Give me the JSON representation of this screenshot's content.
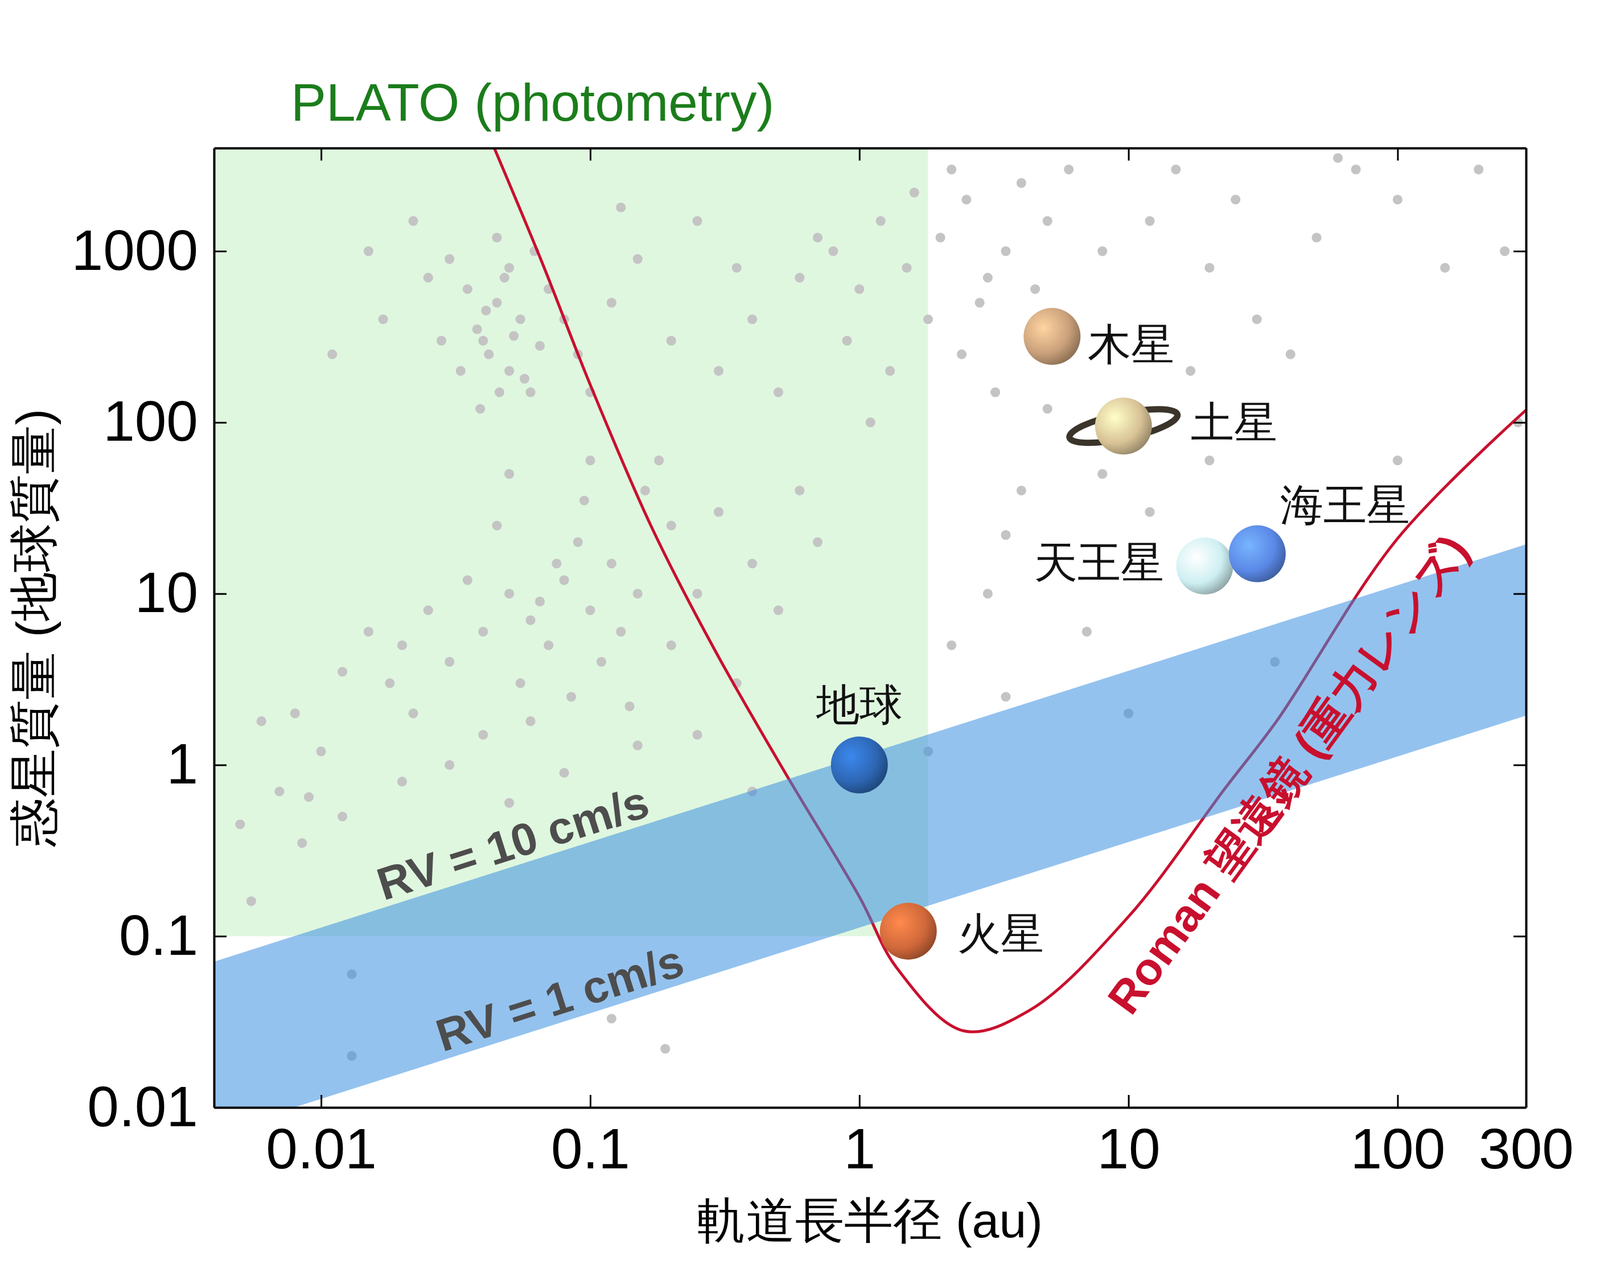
{
  "chart_data": {
    "type": "scatter",
    "log": true,
    "xlabel": "軌道長半径 (au)",
    "ylabel": "惑星質量 (地球質量)",
    "xlim": [
      0.004,
      300
    ],
    "ylim": [
      0.01,
      4000
    ],
    "xticks": [
      0.01,
      0.1,
      1,
      10,
      100,
      300
    ],
    "yticks": [
      0.01,
      0.1,
      1,
      10,
      100,
      1000
    ],
    "series": [
      {
        "color": "#c4c4c4",
        "marker": "circle",
        "x": [
          0.04,
          0.045,
          0.05,
          0.055,
          0.035,
          0.042,
          0.06,
          0.048,
          0.038,
          0.052,
          0.065,
          0.03,
          0.045,
          0.07,
          0.033,
          0.057,
          0.041,
          0.05,
          0.08,
          0.028,
          0.062,
          0.046,
          0.039,
          0.025,
          0.09,
          0.12,
          0.15,
          0.2,
          0.25,
          0.3,
          0.1,
          0.18,
          0.35,
          0.4,
          0.13,
          0.022,
          0.017,
          0.015,
          0.011,
          0.8,
          1,
          1.2,
          1.5,
          2,
          2.5,
          3,
          1.8,
          2.2,
          0.9,
          1.3,
          3.5,
          4,
          0.6,
          0.7,
          1.6,
          2.8,
          5,
          6,
          8,
          0.5,
          1.1,
          2.4,
          3.2,
          4.5,
          0.05,
          0.06,
          0.08,
          0.1,
          0.07,
          0.09,
          0.12,
          0.04,
          0.03,
          0.11,
          0.15,
          0.2,
          0.065,
          0.075,
          0.055,
          0.085,
          0.13,
          0.045,
          0.035,
          0.025,
          0.02,
          0.018,
          0.16,
          0.25,
          0.3,
          0.095,
          0.14,
          0.06,
          0.04,
          0.022,
          0.015,
          0.012,
          0.2,
          0.1,
          0.05,
          0.4,
          0.5,
          0.35,
          0.6,
          0.7,
          0.01,
          0.008,
          0.006,
          0.007,
          0.012,
          0.02,
          0.03,
          0.05,
          0.08,
          0.15,
          0.25,
          0.4,
          0.0055,
          0.0085,
          0.005,
          0.009,
          0.013,
          0.013,
          0.12,
          0.19,
          5,
          8,
          17,
          12,
          15,
          20,
          25,
          30,
          40,
          50,
          70,
          100,
          150,
          200,
          250,
          7,
          12,
          3,
          3.5,
          2.2,
          1.8,
          3.5,
          10,
          35,
          100,
          280,
          60,
          20,
          4
        ],
        "y": [
          300,
          500,
          200,
          400,
          600,
          250,
          150,
          700,
          350,
          320,
          280,
          900,
          1200,
          600,
          200,
          180,
          450,
          800,
          400,
          300,
          1000,
          150,
          120,
          700,
          250,
          500,
          900,
          300,
          1500,
          200,
          150,
          60,
          800,
          400,
          1800,
          1500,
          400,
          1000,
          250,
          1000,
          600,
          1500,
          800,
          1200,
          2000,
          700,
          400,
          3000,
          300,
          200,
          1000,
          2500,
          700,
          1200,
          2200,
          500,
          1500,
          3000,
          1000,
          150,
          100,
          250,
          150,
          600,
          10,
          7,
          12,
          8,
          5,
          20,
          15,
          6,
          4,
          4,
          10,
          25,
          9,
          15,
          3,
          2.5,
          6,
          25,
          12,
          8,
          5,
          3,
          40,
          10,
          30,
          35,
          2.2,
          1.8,
          1.5,
          2,
          6,
          3.5,
          5,
          60,
          50,
          15,
          8,
          3,
          40,
          20,
          1.2,
          2,
          1.8,
          0.7,
          0.5,
          0.8,
          1,
          0.6,
          0.9,
          1.3,
          1.5,
          0.7,
          0.16,
          0.35,
          0.45,
          0.65,
          0.06,
          0.02,
          0.033,
          0.022,
          120,
          50,
          200,
          1500,
          3000,
          800,
          2000,
          400,
          250,
          1200,
          3000,
          2000,
          800,
          3000,
          1000,
          6,
          30,
          10,
          22,
          5,
          1.2,
          2.5,
          2,
          4,
          60,
          100,
          3500,
          60,
          40
        ]
      }
    ],
    "regions": [
      {
        "label": "PLATO (photometry)",
        "xlim": [
          0.004,
          1.8
        ],
        "ylim": [
          0.1,
          4000
        ],
        "color": "#dff7df"
      }
    ],
    "bands": [
      {
        "color": "#3d8fe0",
        "lines": [
          {
            "label": "RV = 10 cm/s",
            "x": [
              0.004,
              300
            ],
            "y": [
              0.071,
              19.4
            ]
          },
          {
            "label": "RV = 1 cm/s",
            "x": [
              0.004,
              300
            ],
            "y": [
              0.0071,
              1.94
            ]
          }
        ]
      }
    ],
    "curves": [
      {
        "label": "Roman 望遠鏡 (重力レンズ)",
        "color": "#c8102e",
        "x": [
          0.044,
          0.066,
          0.1,
          0.17,
          0.29,
          0.53,
          1,
          1.38,
          2.44,
          4.3,
          10,
          23,
          35.5,
          100,
          300
        ],
        "y": [
          4000,
          870,
          166,
          24,
          4.7,
          0.9,
          0.17,
          0.065,
          0.028,
          0.037,
          0.13,
          0.74,
          1.8,
          21,
          118
        ]
      }
    ],
    "planets": [
      {
        "label": "木星",
        "x": 5.2,
        "y": 317.8,
        "color": "#c9a07a"
      },
      {
        "label": "土星",
        "x": 9.58,
        "y": 95.2,
        "color": "#d8c296"
      },
      {
        "label": "天王星",
        "x": 19.2,
        "y": 14.5,
        "color": "#cdeff2"
      },
      {
        "label": "海王星",
        "x": 30.1,
        "y": 17.1,
        "color": "#5a88e6"
      },
      {
        "label": "地球",
        "x": 1,
        "y": 1,
        "color": "#2d66b3"
      },
      {
        "label": "火星",
        "x": 1.52,
        "y": 0.107,
        "color": "#d0683a"
      }
    ]
  }
}
